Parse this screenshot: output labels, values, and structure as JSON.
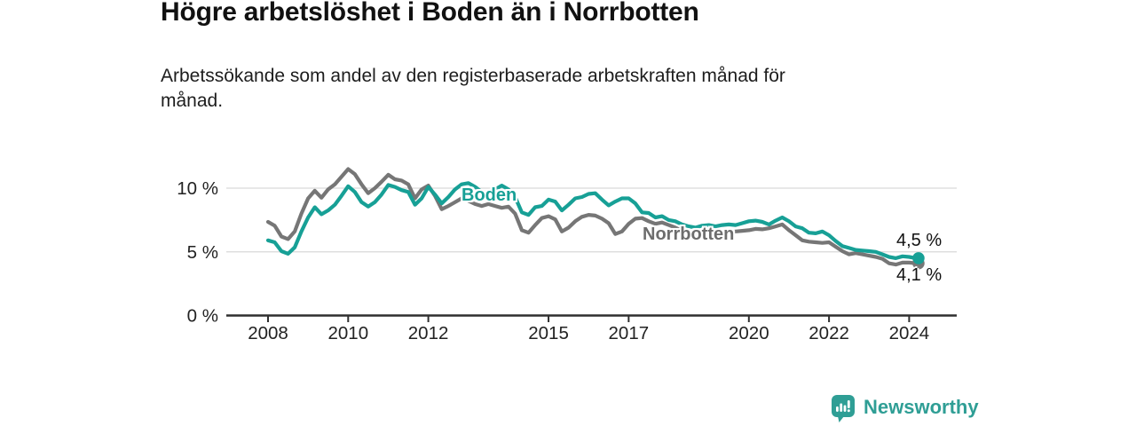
{
  "header": {
    "title": "Högre arbetslöshet i Boden än i Norrbotten",
    "subtitle_line1": "Arbetssökande som andel av den registerbaserade arbetskraften månad för",
    "subtitle_line2": "månad."
  },
  "chart_data": {
    "type": "line",
    "title": "Högre arbetslöshet i Boden än i Norrbotten",
    "subtitle": "Arbetssökande som andel av den registerbaserade arbetskraften månad för månad.",
    "x_start": 2008.0,
    "x_step_years": 0.16667,
    "xlim": [
      2006.95,
      2025.1
    ],
    "ylim": [
      0,
      12.5
    ],
    "grid": "horizontal",
    "x_ticks": [
      2008,
      2010,
      2012,
      2015,
      2017,
      2020,
      2022,
      2024
    ],
    "y_ticks": [
      {
        "value": 0,
        "label": "0 %"
      },
      {
        "value": 5,
        "label": "5 %"
      },
      {
        "value": 10,
        "label": "10 %"
      }
    ],
    "colors": {
      "boden": "#17a096",
      "norrbotten": "#767676",
      "grid": "#d9d9d9",
      "axis": "#2f2f2f",
      "tick_text": "#222222"
    },
    "series": [
      {
        "name": "Boden",
        "color": "#17a096",
        "end_label": "4,5 %",
        "end_value": 4.5,
        "values": [
          5.9,
          5.75,
          5.05,
          4.85,
          5.35,
          6.6,
          7.7,
          8.5,
          7.95,
          8.25,
          8.7,
          9.4,
          10.15,
          9.7,
          8.9,
          8.55,
          8.9,
          9.5,
          10.25,
          10.1,
          9.85,
          9.7,
          8.7,
          9.2,
          10.1,
          9.5,
          8.8,
          9.3,
          9.9,
          10.3,
          10.4,
          10.1,
          9.7,
          9.7,
          9.9,
          10.2,
          9.9,
          9.3,
          8.1,
          7.9,
          8.5,
          8.6,
          9.1,
          8.95,
          8.25,
          8.7,
          9.2,
          9.3,
          9.55,
          9.6,
          9.1,
          8.65,
          8.95,
          9.2,
          9.2,
          8.8,
          8.1,
          8.05,
          7.7,
          7.8,
          7.5,
          7.4,
          7.15,
          7.0,
          6.9,
          7.05,
          7.1,
          7.0,
          7.1,
          7.15,
          7.1,
          7.25,
          7.4,
          7.45,
          7.35,
          7.15,
          7.45,
          7.7,
          7.4,
          7.0,
          6.85,
          6.5,
          6.45,
          6.6,
          6.3,
          5.85,
          5.45,
          5.3,
          5.15,
          5.1,
          5.05,
          5.0,
          4.8,
          4.6,
          4.5,
          4.65,
          4.6,
          4.5
        ]
      },
      {
        "name": "Norrbotten",
        "color": "#767676",
        "end_label": "4,1 %",
        "end_value": 4.1,
        "values": [
          7.35,
          7.05,
          6.2,
          6.0,
          6.6,
          8.0,
          9.2,
          9.8,
          9.25,
          9.9,
          10.3,
          10.9,
          11.5,
          11.1,
          10.3,
          9.6,
          10.0,
          10.5,
          11.05,
          10.7,
          10.6,
          10.3,
          9.2,
          9.9,
          10.2,
          9.4,
          8.35,
          8.6,
          8.9,
          9.2,
          9.0,
          8.75,
          8.6,
          8.75,
          8.6,
          8.45,
          8.55,
          8.0,
          6.7,
          6.5,
          7.1,
          7.65,
          7.8,
          7.55,
          6.6,
          6.9,
          7.4,
          7.75,
          7.9,
          7.85,
          7.6,
          7.25,
          6.4,
          6.6,
          7.2,
          7.6,
          7.65,
          7.4,
          7.2,
          7.3,
          7.1,
          6.9,
          6.65,
          6.5,
          6.4,
          6.45,
          6.5,
          6.45,
          6.5,
          6.55,
          6.6,
          6.65,
          6.7,
          6.8,
          6.77,
          6.85,
          7.0,
          7.15,
          6.7,
          6.3,
          5.9,
          5.8,
          5.75,
          5.7,
          5.75,
          5.4,
          5.05,
          4.8,
          4.9,
          4.8,
          4.7,
          4.6,
          4.45,
          4.1,
          4.0,
          4.15,
          4.15,
          4.1
        ]
      }
    ]
  },
  "footer": {
    "brand": "Newsworthy"
  }
}
